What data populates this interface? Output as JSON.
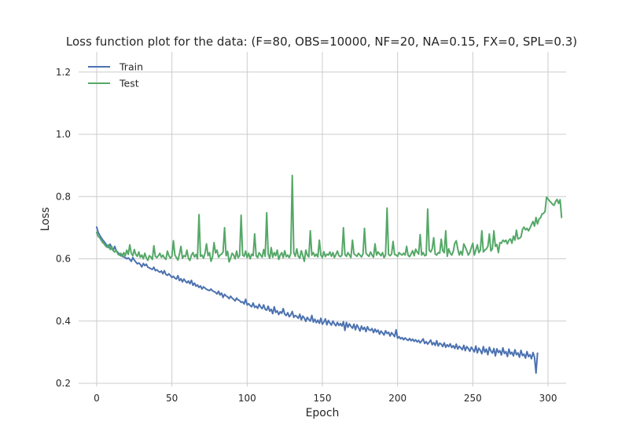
{
  "chart_data": {
    "type": "line",
    "title": "Loss function plot for the data: (F=80, OBS=10000, NF=20, NA=0.15, FX=0, SPL=0.3)",
    "xlabel": "Epoch",
    "ylabel": "Loss",
    "xlim": [
      -12,
      312
    ],
    "ylim": [
      0.19,
      1.265
    ],
    "xticks": [
      0,
      50,
      100,
      150,
      200,
      250,
      300
    ],
    "yticks": [
      0.2,
      0.4,
      0.6,
      0.8,
      1.0,
      1.2
    ],
    "xtick_labels": [
      "0",
      "50",
      "100",
      "150",
      "200",
      "250",
      "300"
    ],
    "ytick_labels": [
      "0.2",
      "0.4",
      "0.6",
      "0.8",
      "1.0",
      "1.2"
    ],
    "grid": true,
    "legend_position": "upper-left",
    "series": [
      {
        "name": "Train",
        "color": "#4c72b0",
        "x_start": 0,
        "x_step": 1,
        "values": [
          0.702,
          0.685,
          0.676,
          0.668,
          0.661,
          0.655,
          0.648,
          0.642,
          0.636,
          0.647,
          0.632,
          0.627,
          0.64,
          0.626,
          0.621,
          0.616,
          0.61,
          0.614,
          0.606,
          0.604,
          0.6,
          0.603,
          0.598,
          0.592,
          0.604,
          0.596,
          0.59,
          0.584,
          0.587,
          0.582,
          0.574,
          0.585,
          0.578,
          0.583,
          0.573,
          0.571,
          0.568,
          0.566,
          0.573,
          0.562,
          0.565,
          0.56,
          0.557,
          0.561,
          0.552,
          0.562,
          0.55,
          0.547,
          0.552,
          0.546,
          0.54,
          0.544,
          0.538,
          0.535,
          0.546,
          0.53,
          0.536,
          0.526,
          0.535,
          0.528,
          0.523,
          0.529,
          0.52,
          0.531,
          0.515,
          0.522,
          0.512,
          0.516,
          0.508,
          0.513,
          0.503,
          0.51,
          0.506,
          0.502,
          0.5,
          0.498,
          0.503,
          0.497,
          0.495,
          0.492,
          0.487,
          0.496,
          0.484,
          0.49,
          0.476,
          0.486,
          0.481,
          0.478,
          0.472,
          0.48,
          0.474,
          0.47,
          0.465,
          0.474,
          0.468,
          0.466,
          0.46,
          0.462,
          0.455,
          0.47,
          0.452,
          0.456,
          0.45,
          0.446,
          0.458,
          0.444,
          0.448,
          0.441,
          0.454,
          0.445,
          0.44,
          0.452,
          0.438,
          0.435,
          0.448,
          0.432,
          0.438,
          0.424,
          0.446,
          0.428,
          0.433,
          0.421,
          0.43,
          0.425,
          0.44,
          0.422,
          0.418,
          0.427,
          0.414,
          0.42,
          0.431,
          0.412,
          0.418,
          0.415,
          0.409,
          0.422,
          0.404,
          0.416,
          0.41,
          0.399,
          0.412,
          0.405,
          0.4,
          0.418,
          0.397,
          0.406,
          0.395,
          0.403,
          0.393,
          0.409,
          0.39,
          0.397,
          0.407,
          0.388,
          0.402,
          0.394,
          0.387,
          0.4,
          0.391,
          0.385,
          0.396,
          0.386,
          0.392,
          0.384,
          0.398,
          0.37,
          0.396,
          0.38,
          0.391,
          0.383,
          0.377,
          0.39,
          0.372,
          0.388,
          0.379,
          0.368,
          0.384,
          0.373,
          0.38,
          0.366,
          0.382,
          0.372,
          0.37,
          0.376,
          0.363,
          0.374,
          0.365,
          0.371,
          0.358,
          0.368,
          0.362,
          0.355,
          0.369,
          0.36,
          0.364,
          0.352,
          0.363,
          0.357,
          0.35,
          0.372,
          0.345,
          0.35,
          0.343,
          0.347,
          0.34,
          0.346,
          0.341,
          0.338,
          0.344,
          0.337,
          0.342,
          0.335,
          0.34,
          0.333,
          0.338,
          0.33,
          0.336,
          0.343,
          0.328,
          0.334,
          0.326,
          0.332,
          0.339,
          0.324,
          0.331,
          0.322,
          0.337,
          0.32,
          0.329,
          0.326,
          0.318,
          0.33,
          0.316,
          0.324,
          0.318,
          0.327,
          0.315,
          0.321,
          0.312,
          0.326,
          0.31,
          0.319,
          0.314,
          0.308,
          0.322,
          0.305,
          0.318,
          0.312,
          0.303,
          0.316,
          0.309,
          0.301,
          0.32,
          0.298,
          0.313,
          0.306,
          0.295,
          0.318,
          0.3,
          0.31,
          0.292,
          0.316,
          0.304,
          0.297,
          0.312,
          0.288,
          0.311,
          0.299,
          0.305,
          0.291,
          0.314,
          0.296,
          0.302,
          0.286,
          0.31,
          0.294,
          0.3,
          0.288,
          0.308,
          0.292,
          0.298,
          0.284,
          0.306,
          0.289,
          0.294,
          0.281,
          0.302,
          0.286,
          0.292,
          0.279,
          0.299,
          0.284,
          0.233,
          0.297
        ]
      },
      {
        "name": "Test",
        "color": "#55a868",
        "x_start": 0,
        "x_step": 1,
        "values": [
          0.685,
          0.672,
          0.668,
          0.66,
          0.652,
          0.648,
          0.641,
          0.637,
          0.645,
          0.63,
          0.64,
          0.626,
          0.622,
          0.628,
          0.616,
          0.612,
          0.618,
          0.607,
          0.62,
          0.61,
          0.628,
          0.614,
          0.645,
          0.618,
          0.61,
          0.63,
          0.614,
          0.608,
          0.622,
          0.605,
          0.612,
          0.6,
          0.618,
          0.603,
          0.595,
          0.61,
          0.606,
          0.598,
          0.642,
          0.608,
          0.604,
          0.61,
          0.618,
          0.605,
          0.612,
          0.603,
          0.598,
          0.625,
          0.61,
          0.602,
          0.608,
          0.658,
          0.612,
          0.604,
          0.596,
          0.615,
          0.64,
          0.602,
          0.61,
          0.607,
          0.628,
          0.601,
          0.595,
          0.612,
          0.62,
          0.606,
          0.614,
          0.6,
          0.742,
          0.608,
          0.612,
          0.602,
          0.618,
          0.648,
          0.61,
          0.62,
          0.592,
          0.606,
          0.652,
          0.619,
          0.628,
          0.605,
          0.612,
          0.615,
          0.622,
          0.7,
          0.61,
          0.624,
          0.59,
          0.602,
          0.618,
          0.612,
          0.6,
          0.625,
          0.604,
          0.61,
          0.74,
          0.612,
          0.608,
          0.625,
          0.604,
          0.618,
          0.6,
          0.615,
          0.61,
          0.68,
          0.61,
          0.604,
          0.62,
          0.612,
          0.605,
          0.63,
          0.608,
          0.748,
          0.615,
          0.602,
          0.636,
          0.605,
          0.62,
          0.61,
          0.628,
          0.598,
          0.612,
          0.62,
          0.604,
          0.626,
          0.607,
          0.612,
          0.604,
          0.617,
          0.868,
          0.62,
          0.608,
          0.632,
          0.608,
          0.602,
          0.626,
          0.61,
          0.592,
          0.628,
          0.612,
          0.606,
          0.69,
          0.612,
          0.62,
          0.608,
          0.615,
          0.606,
          0.66,
          0.612,
          0.604,
          0.623,
          0.607,
          0.615,
          0.612,
          0.622,
          0.608,
          0.62,
          0.604,
          0.614,
          0.625,
          0.61,
          0.607,
          0.612,
          0.7,
          0.614,
          0.608,
          0.62,
          0.612,
          0.604,
          0.66,
          0.616,
          0.612,
          0.608,
          0.618,
          0.612,
          0.606,
          0.615,
          0.698,
          0.618,
          0.612,
          0.608,
          0.622,
          0.612,
          0.605,
          0.648,
          0.612,
          0.622,
          0.616,
          0.61,
          0.62,
          0.604,
          0.612,
          0.763,
          0.614,
          0.61,
          0.615,
          0.656,
          0.614,
          0.612,
          0.608,
          0.62,
          0.615,
          0.612,
          0.618,
          0.612,
          0.64,
          0.611,
          0.607,
          0.616,
          0.626,
          0.61,
          0.631,
          0.622,
          0.615,
          0.678,
          0.612,
          0.62,
          0.61,
          0.612,
          0.76,
          0.628,
          0.622,
          0.632,
          0.668,
          0.615,
          0.612,
          0.62,
          0.618,
          0.663,
          0.626,
          0.62,
          0.69,
          0.608,
          0.632,
          0.618,
          0.612,
          0.624,
          0.65,
          0.658,
          0.632,
          0.612,
          0.624,
          0.612,
          0.648,
          0.638,
          0.626,
          0.612,
          0.62,
          0.636,
          0.65,
          0.612,
          0.628,
          0.645,
          0.62,
          0.628,
          0.69,
          0.622,
          0.628,
          0.632,
          0.64,
          0.68,
          0.625,
          0.632,
          0.69,
          0.64,
          0.646,
          0.62,
          0.652,
          0.65,
          0.66,
          0.655,
          0.66,
          0.648,
          0.66,
          0.664,
          0.65,
          0.673,
          0.66,
          0.692,
          0.664,
          0.666,
          0.67,
          0.694,
          0.702,
          0.693,
          0.698,
          0.69,
          0.699,
          0.71,
          0.72,
          0.705,
          0.733,
          0.712,
          0.728,
          0.732,
          0.744,
          0.746,
          0.752,
          0.798,
          0.792,
          0.786,
          0.781,
          0.775,
          0.772,
          0.784,
          0.791,
          0.778,
          0.79,
          0.733
        ]
      }
    ]
  }
}
